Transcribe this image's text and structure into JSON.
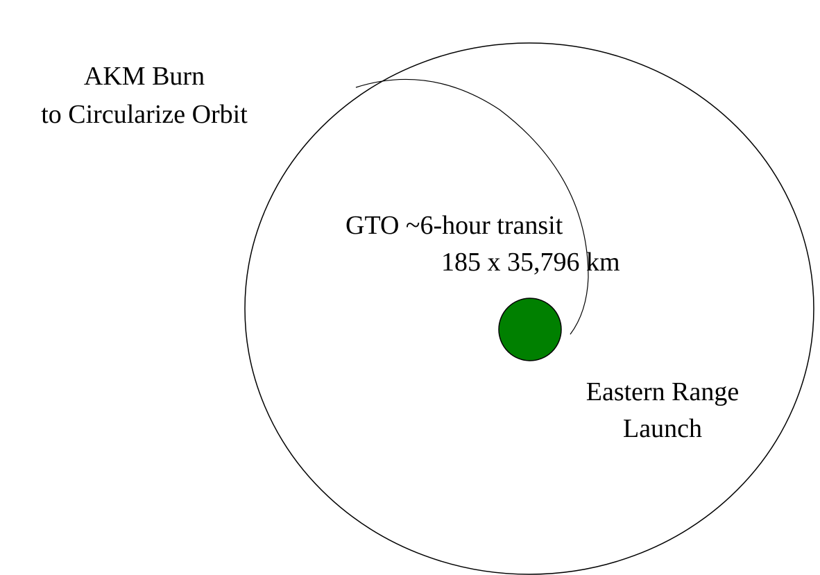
{
  "labels": {
    "akm_burn": [
      "AKM Burn",
      "to Circularize Orbit"
    ],
    "gto": [
      "GTO ~6-hour transit",
      "185 x 35,796 km"
    ],
    "launch": [
      "Eastern Range",
      "Launch"
    ]
  }
}
